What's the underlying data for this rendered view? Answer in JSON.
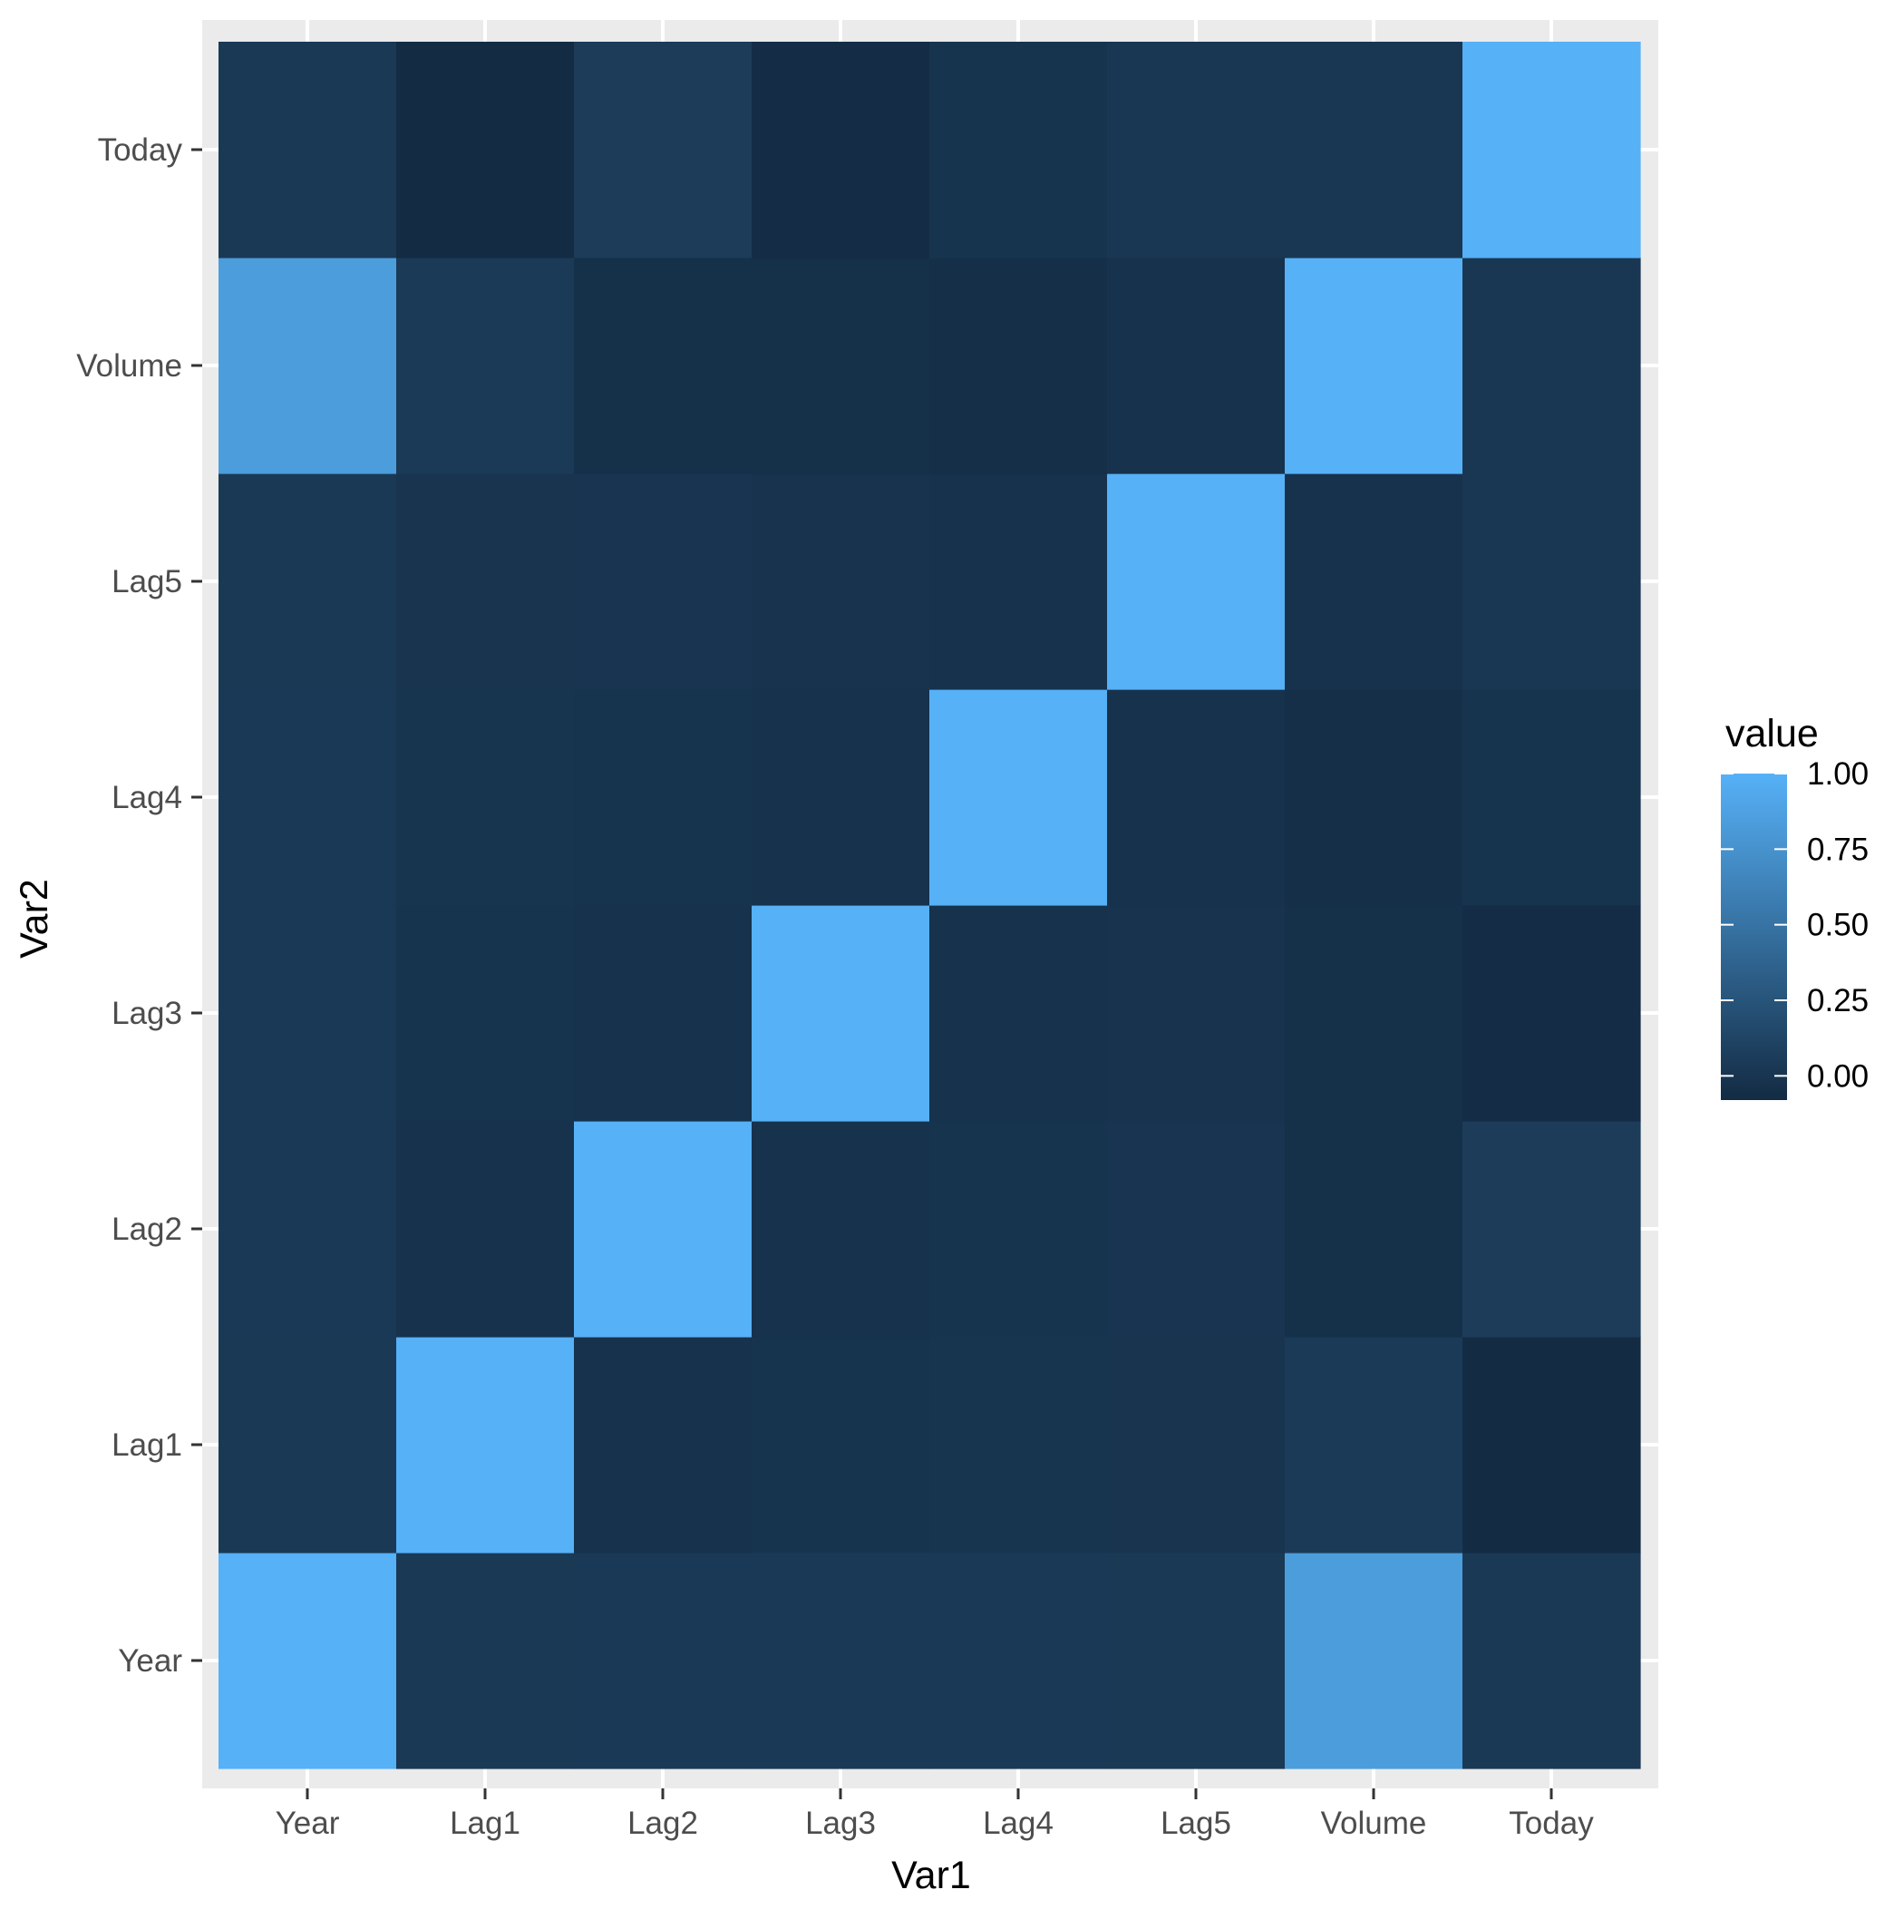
{
  "chart_data": {
    "type": "heatmap",
    "x_categories": [
      "Year",
      "Lag1",
      "Lag2",
      "Lag3",
      "Lag4",
      "Lag5",
      "Volume",
      "Today"
    ],
    "y_categories": [
      "Year",
      "Lag1",
      "Lag2",
      "Lag3",
      "Lag4",
      "Lag5",
      "Volume",
      "Today"
    ],
    "xlabel": "Var1",
    "ylabel": "Var2",
    "legend": {
      "title": "value",
      "position": "right",
      "ticks": [
        1.0,
        0.75,
        0.5,
        0.25,
        0.0
      ],
      "tick_labels": [
        "1.00",
        "0.75",
        "0.50",
        "0.25",
        "0.00"
      ],
      "range": [
        -0.08,
        1.0
      ],
      "low_color": "#132B43",
      "high_color": "#56B1F7"
    },
    "values": [
      [
        1.0,
        0.03,
        0.031,
        0.033,
        0.036,
        0.03,
        0.839,
        0.03
      ],
      [
        0.03,
        1.0,
        -0.026,
        -0.011,
        -0.003,
        -0.006,
        0.041,
        -0.075
      ],
      [
        0.031,
        -0.026,
        1.0,
        -0.026,
        -0.011,
        -0.004,
        -0.043,
        0.059
      ],
      [
        0.033,
        -0.011,
        -0.026,
        1.0,
        -0.024,
        -0.019,
        -0.042,
        -0.071
      ],
      [
        0.036,
        -0.003,
        -0.011,
        -0.024,
        1.0,
        -0.027,
        -0.048,
        -0.008
      ],
      [
        0.03,
        -0.006,
        -0.004,
        -0.019,
        -0.027,
        1.0,
        -0.022,
        0.011
      ],
      [
        0.839,
        0.041,
        -0.043,
        -0.042,
        -0.048,
        -0.022,
        1.0,
        0.015
      ],
      [
        0.03,
        -0.075,
        0.059,
        -0.071,
        -0.008,
        0.011,
        0.015,
        1.0
      ]
    ]
  }
}
